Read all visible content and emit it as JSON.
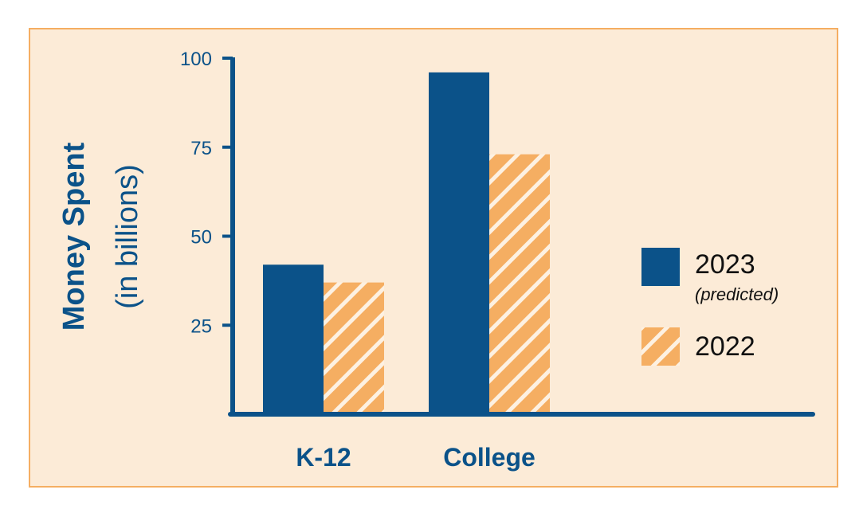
{
  "colors": {
    "series_2023": "#0b5289",
    "series_2022": "#f5ae62",
    "background": "#fcebd7",
    "border": "#f5ae62",
    "axis": "#0b5289"
  },
  "chart_data": {
    "type": "bar",
    "categories": [
      "K-12",
      "College"
    ],
    "series": [
      {
        "name": "2023",
        "name_note": "(predicted)",
        "values": [
          42,
          96
        ],
        "pattern": "solid"
      },
      {
        "name": "2022",
        "values": [
          37,
          73
        ],
        "pattern": "diagonal-stripes"
      }
    ],
    "ylabel_main": "Money Spent",
    "ylabel_sub": "(in billions)",
    "yticks": [
      25,
      50,
      75,
      100
    ],
    "ylim": [
      0,
      100
    ],
    "grid": false,
    "legend_position": "right"
  }
}
